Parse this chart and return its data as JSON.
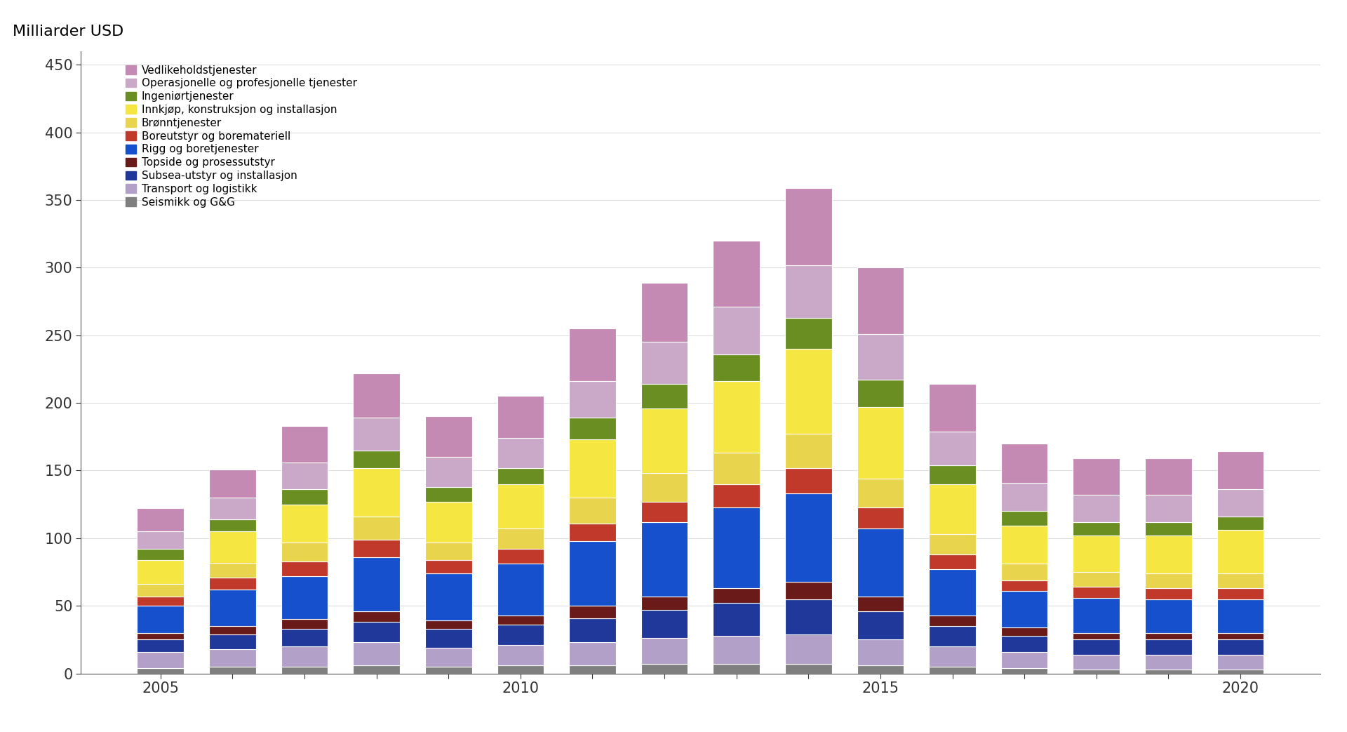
{
  "ylabel": "Milliarder USD",
  "years": [
    2005,
    2006,
    2007,
    2008,
    2009,
    2010,
    2011,
    2012,
    2013,
    2014,
    2015,
    2016,
    2017,
    2018,
    2019,
    2020
  ],
  "segments": [
    "Seismikk og G&G",
    "Transport og logistikk",
    "Subsea-utstyr og installasjon",
    "Topside og prosessutstyr",
    "Rigg og boretjenester",
    "Boreutstyr og boremateriell",
    "Brønntjenester",
    "Innkjøp, konstruksjon og installasjon",
    "Ingeniørtjenester",
    "Operasjonelle og profesjonelle tjenester",
    "Vedlikeholdstjenester"
  ],
  "colors": [
    "#7f7f7f",
    "#b3a0c8",
    "#1f3899",
    "#6b1a1a",
    "#1650cc",
    "#c0392b",
    "#e8d44d",
    "#f5e642",
    "#6b8e23",
    "#c9a8c8",
    "#c48ab4"
  ],
  "data": {
    "Seismikk og G&G": [
      4,
      5,
      5,
      6,
      5,
      6,
      6,
      7,
      7,
      7,
      6,
      5,
      4,
      3,
      3,
      3
    ],
    "Transport og logistikk": [
      12,
      13,
      15,
      17,
      14,
      15,
      17,
      19,
      21,
      22,
      19,
      15,
      12,
      11,
      11,
      11
    ],
    "Subsea-utstyr og installasjon": [
      9,
      11,
      13,
      15,
      14,
      15,
      18,
      21,
      24,
      26,
      21,
      15,
      12,
      11,
      11,
      11
    ],
    "Topside og prosessutstyr": [
      5,
      6,
      7,
      8,
      6,
      7,
      9,
      10,
      11,
      13,
      11,
      8,
      6,
      5,
      5,
      5
    ],
    "Rigg og boretjenester": [
      20,
      27,
      32,
      40,
      35,
      38,
      48,
      55,
      60,
      65,
      50,
      34,
      27,
      26,
      25,
      25
    ],
    "Boreutstyr og boremateriell": [
      7,
      9,
      11,
      13,
      10,
      11,
      13,
      15,
      17,
      19,
      16,
      11,
      8,
      8,
      8,
      8
    ],
    "Brønntjenester": [
      9,
      11,
      14,
      17,
      13,
      15,
      19,
      21,
      23,
      25,
      21,
      15,
      12,
      11,
      11,
      11
    ],
    "Innkjøp, konstruksjon og installasjon": [
      18,
      23,
      28,
      36,
      30,
      33,
      43,
      48,
      53,
      63,
      53,
      37,
      28,
      27,
      28,
      32
    ],
    "Ingeniørtjenester": [
      8,
      9,
      11,
      13,
      11,
      12,
      16,
      18,
      20,
      23,
      20,
      14,
      11,
      10,
      10,
      10
    ],
    "Operasjonelle og profesjonelle tjenester": [
      13,
      16,
      20,
      24,
      22,
      22,
      27,
      31,
      35,
      39,
      34,
      25,
      21,
      20,
      20,
      20
    ],
    "Vedlikeholdstjenester": [
      17,
      21,
      27,
      33,
      30,
      31,
      39,
      44,
      49,
      57,
      49,
      35,
      29,
      27,
      27,
      28
    ]
  },
  "ylim": [
    0,
    460
  ],
  "yticks": [
    0,
    50,
    100,
    150,
    200,
    250,
    300,
    350,
    400,
    450
  ],
  "background_color": "#ffffff",
  "bar_width": 0.65,
  "xtick_years": [
    2005,
    2010,
    2015,
    2020
  ],
  "legend_labels_reversed": [
    "Vedlikeholdstjenester",
    "Operasjonelle og profesjonelle tjenester",
    "Ingeniørtjenester",
    "Innkjøp, konstruksjon og installasjon",
    "Brønntjenester",
    "Boreutstyr og boremateriell",
    "Rigg og boretjenester",
    "Topside og prosessutstyr",
    "Subsea-utstyr og installasjon",
    "Transport og logistikk",
    "Seismikk og G&G"
  ]
}
